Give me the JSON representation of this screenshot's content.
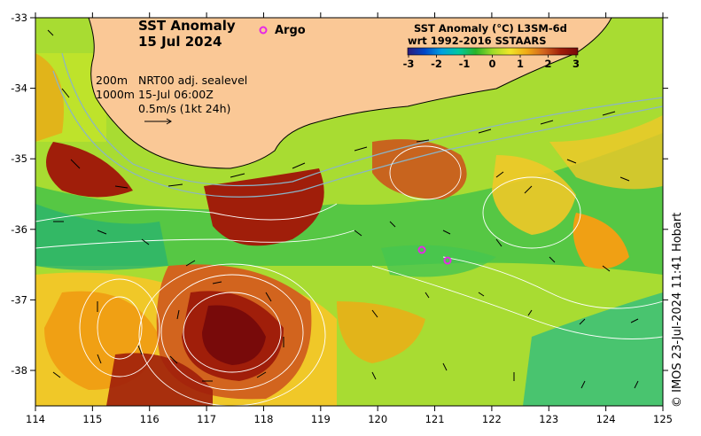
{
  "title": {
    "line1": "SST Anomaly",
    "line2": "15 Jul 2024"
  },
  "argo_legend": "Argo",
  "colorbar": {
    "title1": "SST Anomaly (°C) L3SM-6d",
    "title2": "wrt 1992-2016 SSTAARS",
    "ticks": [
      "-3",
      "-2",
      "-1",
      "0",
      "1",
      "2",
      "3"
    ],
    "colors": [
      "#2a1a7a",
      "#0046c8",
      "#00a0e0",
      "#00c8a0",
      "#28b428",
      "#a0dc28",
      "#f0e628",
      "#f0aa14",
      "#d2641e",
      "#a01e0a",
      "#780a0a"
    ]
  },
  "contours": {
    "line1": "200m",
    "line2": "1000m",
    "label": "NRT00 adj. sealevel",
    "time": "15-Jul 06:00Z"
  },
  "vector_scale": "0.5m/s (1kt 24h)",
  "credit": "© IMOS 23-Jul-2024 11:41 Hobart",
  "lat_ticks": [
    "-33",
    "-34",
    "-35",
    "-36",
    "-37",
    "-38"
  ],
  "lon_ticks": [
    "114",
    "115",
    "116",
    "117",
    "118",
    "119",
    "120",
    "121",
    "122",
    "123",
    "124",
    "125"
  ],
  "map_data": {
    "lon_range": [
      114,
      125
    ],
    "lat_range": [
      -38.5,
      -33
    ],
    "argo_floats": [
      {
        "lon": 120.75,
        "lat": -36.3
      },
      {
        "lon": 121.2,
        "lat": -36.45
      }
    ],
    "colors": {
      "land": "#fac896",
      "argo": "#e628e6",
      "coast": "#000000"
    }
  }
}
